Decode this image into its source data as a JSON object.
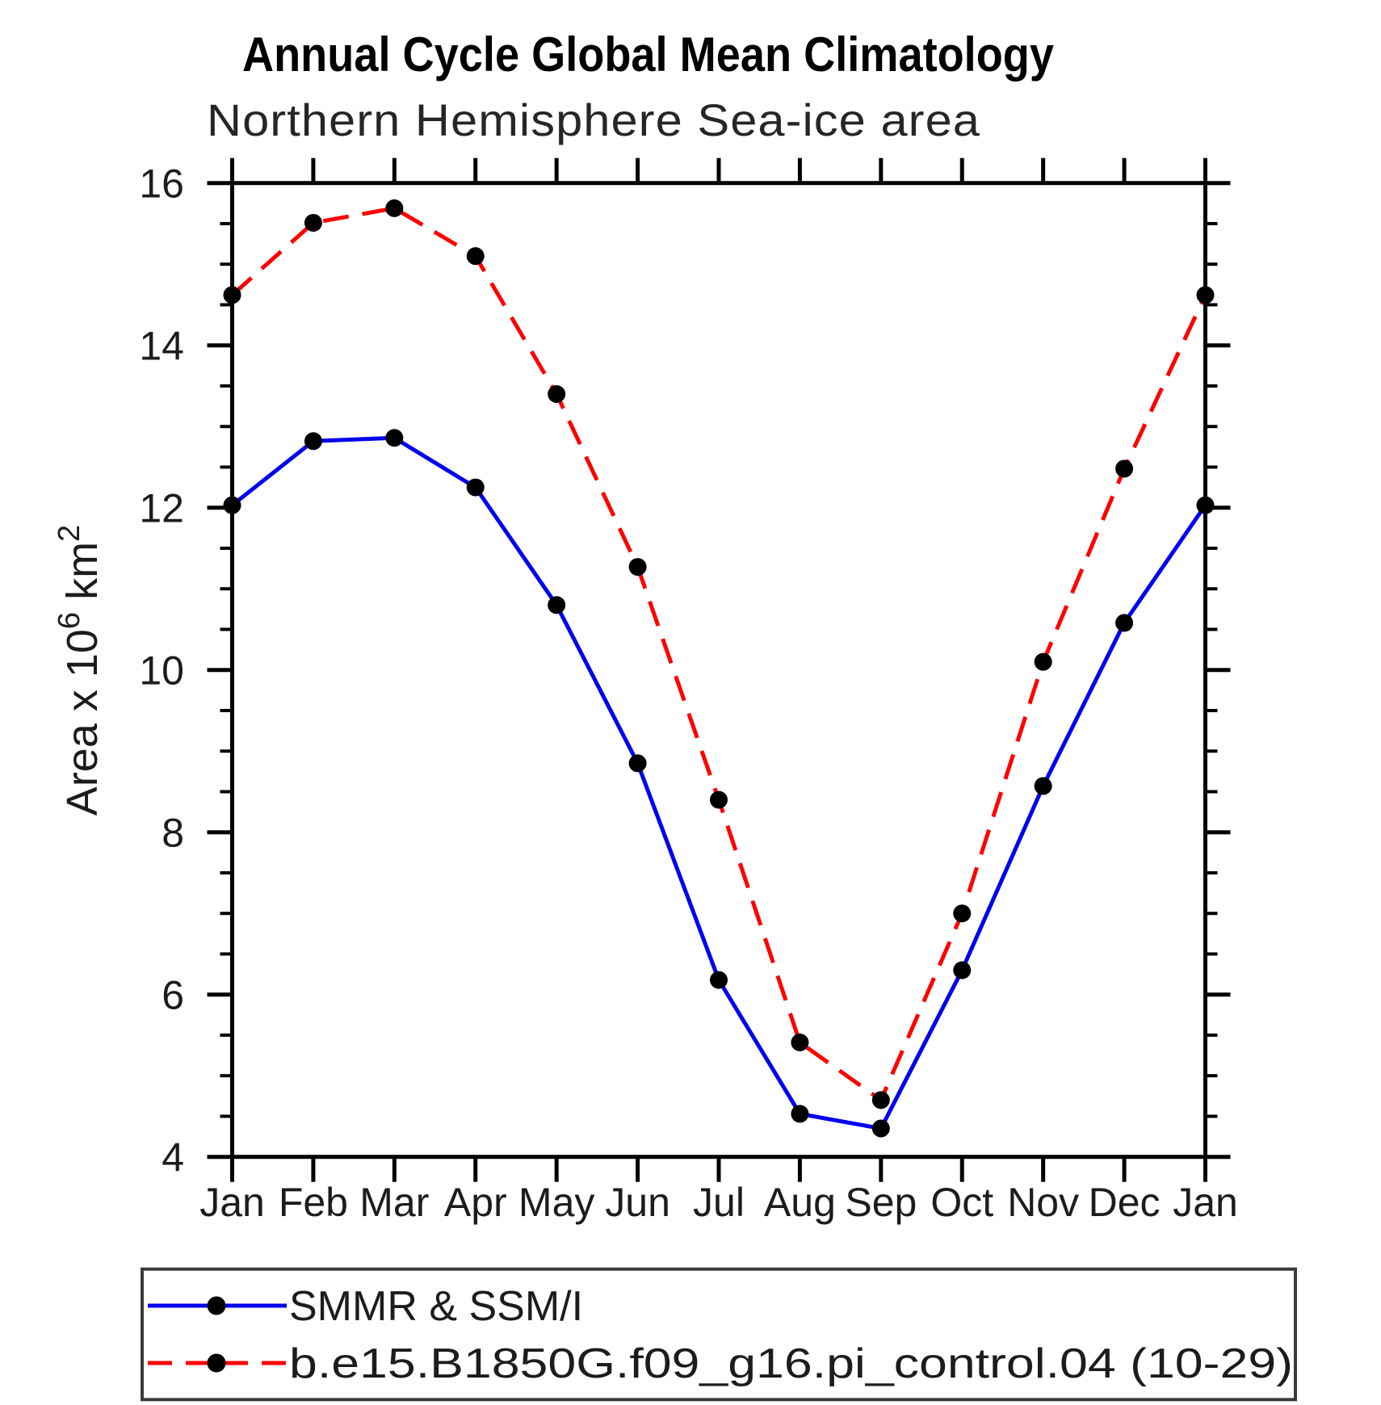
{
  "title": "Annual Cycle Global Mean Climatology",
  "subtitle": "Northern Hemisphere Sea-ice area",
  "chart_data": {
    "type": "line",
    "categories": [
      "Jan",
      "Feb",
      "Mar",
      "Apr",
      "May",
      "Jun",
      "Jul",
      "Aug",
      "Sep",
      "Oct",
      "Nov",
      "Dec",
      "Jan"
    ],
    "series": [
      {
        "name": "SMMR & SSM/I",
        "color": "#0000ee",
        "line_style": "solid",
        "marker": "filled-black-circle",
        "values": [
          12.03,
          12.82,
          12.86,
          12.25,
          10.8,
          8.85,
          6.18,
          4.53,
          4.35,
          6.3,
          8.57,
          10.58,
          12.03
        ]
      },
      {
        "name": "b.e15.B1850G.f09_g16.pi_control.04 (10-29)",
        "color": "#ff0000",
        "line_style": "dashed",
        "marker": "filled-black-circle",
        "values": [
          14.62,
          15.51,
          15.69,
          15.1,
          13.4,
          11.27,
          8.4,
          5.41,
          4.7,
          7.0,
          10.1,
          12.48,
          14.62
        ]
      }
    ],
    "xlabel": "",
    "ylabel": "Area x 10^6 km^2",
    "ylabel_parts": {
      "pre": "Area x 10",
      "sup1": "6",
      "mid": " km",
      "sup2": "2"
    },
    "ylim": [
      4,
      16
    ],
    "ytick_major": [
      4,
      6,
      8,
      10,
      12,
      14,
      16
    ],
    "ytick_minor_step": 0.5,
    "grid": false,
    "legend_position": "bottom",
    "axis_color": "#000000",
    "marker_color": "#000000"
  }
}
